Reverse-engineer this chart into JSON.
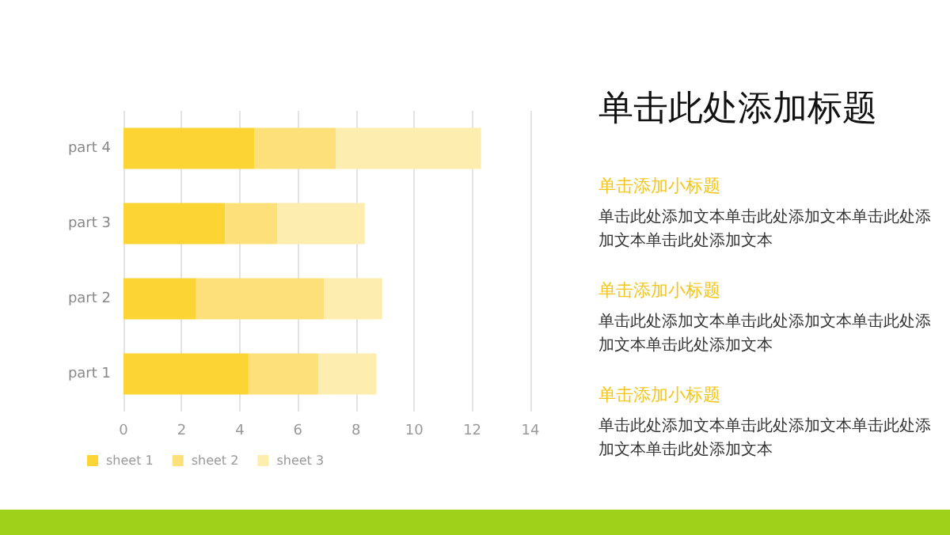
{
  "chart_data": {
    "type": "bar",
    "title": "单击此处添加标题",
    "orientation": "horizontal",
    "stacked": true,
    "categories": [
      "part 4",
      "part 3",
      "part 2",
      "part 1"
    ],
    "series": [
      {
        "name": "sheet 1",
        "color": "#fcd535",
        "values": [
          4.5,
          3.5,
          2.5,
          4.3
        ]
      },
      {
        "name": "sheet 2",
        "color": "#fde07a",
        "values": [
          2.8,
          1.8,
          4.4,
          2.4
        ]
      },
      {
        "name": "sheet 3",
        "color": "#fdeeb0",
        "values": [
          5.0,
          3.0,
          2.0,
          2.0
        ]
      }
    ],
    "xlim": [
      0,
      14
    ],
    "xticks": [
      0,
      2,
      4,
      6,
      8,
      10,
      12,
      14
    ],
    "grid": "x",
    "legend": "bottom left",
    "annotations": [
      "单击添加小标题",
      "单击此处添加文本单击此处添加文本单击此处添加文本单击此处添加文本",
      "单击添加小标题",
      "单击此处添加文本单击此处添加文本单击此处添加文本单击此处添加文本",
      "单击添加小标题",
      "单击此处添加文本单击此处添加文本单击此处添加文本单击此处添加文本"
    ]
  }
}
